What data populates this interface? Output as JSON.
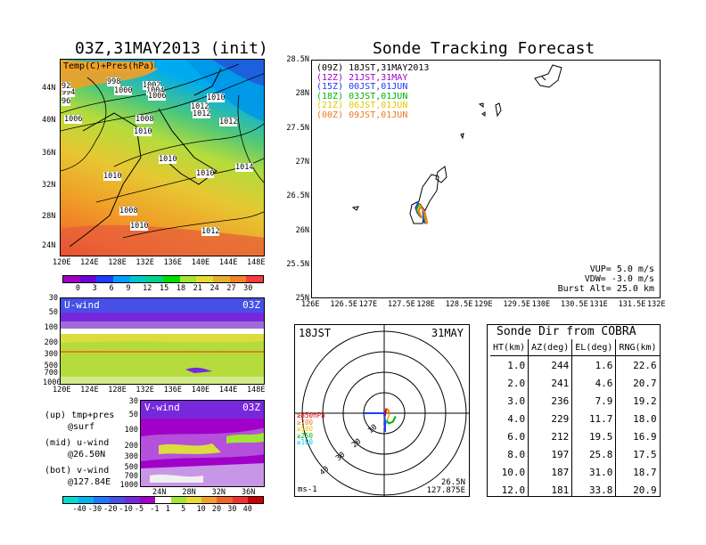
{
  "left": {
    "title": "03Z,31MAY2013 (init)",
    "map_label": "Temp(C)+Pres(hPa)",
    "lat_labels": [
      "44N",
      "40N",
      "36N",
      "32N",
      "28N",
      "24N"
    ],
    "lon_labels": [
      "120E",
      "124E",
      "128E",
      "132E",
      "136E",
      "140E",
      "144E",
      "148E"
    ],
    "isobars": [
      "1006",
      "998",
      "1000",
      "1002",
      "1004",
      "1006",
      "1008",
      "1010",
      "1012",
      "1010",
      "1012",
      "1012",
      "1010",
      "1014",
      "1010",
      "1010",
      "1008",
      "1010",
      "1012",
      "994",
      "96",
      "92"
    ],
    "temp_colorbar": {
      "ticks": [
        "0",
        "3",
        "6",
        "9",
        "12",
        "15",
        "18",
        "21",
        "24",
        "27",
        "30"
      ],
      "colors": [
        "#a000c8",
        "#6e00dc",
        "#1e3cff",
        "#00a0ff",
        "#00c8c8",
        "#00d28c",
        "#00dc00",
        "#a0e632",
        "#e6dc32",
        "#e6af2d",
        "#f08228",
        "#fa3c3c"
      ]
    },
    "u_wind": {
      "label": "U-wind",
      "time": "03Z",
      "p_labels": [
        "30",
        "50",
        "100",
        "200",
        "300",
        "500",
        "700",
        "1000"
      ],
      "lon_labels": [
        "120E",
        "124E",
        "128E",
        "132E",
        "136E",
        "140E",
        "144E",
        "148E"
      ]
    },
    "v_wind": {
      "label": "V-wind",
      "time": "03Z",
      "p_labels": [
        "30",
        "50",
        "100",
        "200",
        "300",
        "500",
        "700",
        "1000"
      ],
      "lat_labels": [
        "24N",
        "28N",
        "32N",
        "36N"
      ]
    },
    "notes": [
      "(up) tmp+pres",
      "@surf",
      "(mid) u-wind",
      "@26.50N",
      "(bot) v-wind",
      "@127.84E"
    ],
    "wind_colorbar": {
      "ticks": [
        "-40",
        "-30",
        "-20",
        "-10",
        "-5",
        "-1",
        "1",
        "5",
        "10",
        "20",
        "30",
        "40"
      ],
      "colors": [
        "#00dcd2",
        "#00b4f0",
        "#1e78ff",
        "#4650e6",
        "#7828dc",
        "#a000c8",
        "#ffffff",
        "#a0e632",
        "#e6dc32",
        "#f0a028",
        "#f06428",
        "#f03232",
        "#c80000"
      ]
    }
  },
  "track": {
    "title": "Sonde Tracking Forecast",
    "legend": [
      {
        "tag": "(09Z)",
        "text": "18JST,31MAY2013",
        "color": "#000000"
      },
      {
        "tag": "(12Z)",
        "text": "21JST,31MAY",
        "color": "#a000c8"
      },
      {
        "tag": "(15Z)",
        "text": "00JST,01JUN",
        "color": "#1e3cff"
      },
      {
        "tag": "(18Z)",
        "text": "03JST,01JUN",
        "color": "#00b400"
      },
      {
        "tag": "(21Z)",
        "text": "06JST,01JUN",
        "color": "#e6c800"
      },
      {
        "tag": "(00Z)",
        "text": "09JST,01JUN",
        "color": "#f07820"
      }
    ],
    "lat_labels": [
      "28.5N",
      "28N",
      "27.5N",
      "27N",
      "26.5N",
      "26N",
      "25.5N",
      "25N"
    ],
    "lon_labels": [
      "126E",
      "126.5E",
      "127E",
      "127.5E",
      "128E",
      "128.5E",
      "129E",
      "129.5E",
      "130E",
      "130.5E",
      "131E",
      "131.5E",
      "132E"
    ],
    "params": [
      "VUP=  5.0 m/s",
      "VDW= -3.0 m/s",
      "Burst Alt= 25.0 km"
    ]
  },
  "polar": {
    "time": "18JST",
    "date": "31MAY",
    "range_labels": [
      "10",
      "20",
      "30",
      "40"
    ],
    "level_legend": [
      {
        "text": "≥850hPa",
        "color": "#e60000"
      },
      {
        "text": "≥700",
        "color": "#f07820"
      },
      {
        "text": "≥500",
        "color": "#e6c800"
      },
      {
        "text": "≥250",
        "color": "#00b400"
      },
      {
        "text": "≥100",
        "color": "#00c8e6"
      }
    ],
    "unit": "ms-1",
    "location": [
      "26.5N",
      "127.875E"
    ]
  },
  "sonde_table": {
    "title": "Sonde Dir from COBRA",
    "headers": [
      "HT(km)",
      "AZ(deg)",
      "EL(deg)",
      "RNG(km)"
    ],
    "rows": [
      [
        "1.0",
        "244",
        "1.6",
        "22.6"
      ],
      [
        "2.0",
        "241",
        "4.6",
        "20.7"
      ],
      [
        "3.0",
        "236",
        "7.9",
        "19.2"
      ],
      [
        "4.0",
        "229",
        "11.7",
        "18.0"
      ],
      [
        "6.0",
        "212",
        "19.5",
        "16.9"
      ],
      [
        "8.0",
        "197",
        "25.8",
        "17.5"
      ],
      [
        "10.0",
        "187",
        "31.0",
        "18.7"
      ],
      [
        "12.0",
        "181",
        "33.8",
        "20.9"
      ]
    ]
  },
  "chart_data": [
    {
      "type": "heatmap",
      "title": "03Z,31MAY2013 (init)",
      "subtitle": "Temp(C)+Pres(hPa)",
      "xlim": [
        120,
        150
      ],
      "ylim": [
        22,
        48
      ],
      "colorbar_range": [
        0,
        30
      ]
    },
    {
      "type": "heatmap",
      "title": "U-wind 03Z",
      "xlim": [
        120,
        150
      ],
      "ylim": [
        1000,
        30
      ]
    },
    {
      "type": "heatmap",
      "title": "V-wind 03Z",
      "xlim": [
        22,
        40
      ],
      "ylim": [
        1000,
        30
      ]
    },
    {
      "type": "line",
      "title": "Sonde Tracking Forecast",
      "xlim": [
        126,
        132
      ],
      "ylim": [
        25,
        28.5
      ],
      "series": [
        {
          "name": "18JST,31MAY2013",
          "x": [
            127.88,
            127.84,
            127.82,
            127.86,
            127.93,
            127.95
          ],
          "y": [
            26.2,
            26.25,
            26.32,
            26.38,
            26.3,
            26.12
          ]
        },
        {
          "name": "21JST,31MAY",
          "x": [
            127.86,
            127.82,
            127.79,
            127.83,
            127.91,
            127.94
          ],
          "y": [
            26.21,
            26.26,
            26.33,
            26.4,
            26.31,
            26.11
          ]
        },
        {
          "name": "00JST,01JUN",
          "x": [
            127.85,
            127.81,
            127.78,
            127.82,
            127.9,
            127.93
          ],
          "y": [
            26.22,
            26.27,
            26.34,
            26.41,
            26.32,
            26.12
          ]
        },
        {
          "name": "03JST,01JUN",
          "x": [
            127.87,
            127.83,
            127.8,
            127.84,
            127.92,
            127.96
          ],
          "y": [
            26.2,
            26.26,
            26.33,
            26.39,
            26.29,
            26.1
          ]
        },
        {
          "name": "06JST,01JUN",
          "x": [
            127.89,
            127.85,
            127.82,
            127.85,
            127.93,
            127.97
          ],
          "y": [
            26.19,
            26.25,
            26.31,
            26.37,
            26.28,
            26.1
          ]
        },
        {
          "name": "09JST,01JUN",
          "x": [
            127.9,
            127.86,
            127.83,
            127.87,
            127.94,
            127.98
          ],
          "y": [
            26.18,
            26.24,
            26.3,
            26.36,
            26.27,
            26.11
          ]
        }
      ]
    },
    {
      "type": "line",
      "title": "18JST 31MAY",
      "range_rings": [
        10,
        20,
        30,
        40
      ],
      "series": [
        {
          "name": "≥850hPa",
          "x": [
            0,
            0.5,
            1.0
          ],
          "y": [
            0,
            -0.6,
            2.4
          ]
        },
        {
          "name": "≥700",
          "x": [
            1.0,
            2.0,
            2.6
          ],
          "y": [
            2.4,
            1.5,
            -0.5
          ]
        },
        {
          "name": "≥500",
          "x": [
            2.6,
            1.8,
            1.2
          ],
          "y": [
            -0.5,
            -2.5,
            -3.5
          ]
        },
        {
          "name": "≥250",
          "x": [
            1.2,
            2.2,
            4.2,
            5.6
          ],
          "y": [
            -3.5,
            -5.0,
            -4.2,
            -1.5
          ]
        },
        {
          "name": "≥100",
          "x": [
            1.2,
            0.5,
            0.2
          ],
          "y": [
            -3.5,
            -5.5,
            -7.0
          ]
        }
      ]
    },
    {
      "type": "table",
      "title": "Sonde Dir from COBRA",
      "columns": [
        "HT(km)",
        "AZ(deg)",
        "EL(deg)",
        "RNG(km)"
      ],
      "rows": [
        [
          1.0,
          244,
          1.6,
          22.6
        ],
        [
          2.0,
          241,
          4.6,
          20.7
        ],
        [
          3.0,
          236,
          7.9,
          19.2
        ],
        [
          4.0,
          229,
          11.7,
          18.0
        ],
        [
          6.0,
          212,
          19.5,
          16.9
        ],
        [
          8.0,
          197,
          25.8,
          17.5
        ],
        [
          10.0,
          187,
          31.0,
          18.7
        ],
        [
          12.0,
          181,
          33.8,
          20.9
        ]
      ]
    }
  ]
}
